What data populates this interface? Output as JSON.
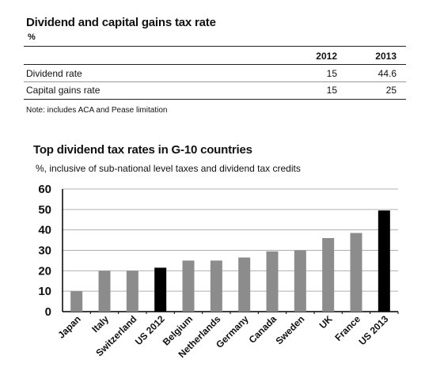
{
  "table": {
    "title": "Dividend and capital gains tax rate",
    "unit": "%",
    "columns": [
      "2012",
      "2013"
    ],
    "rows": [
      {
        "label": "Dividend rate",
        "y2012": "15",
        "y2013": "44.6"
      },
      {
        "label": "Capital gains rate",
        "y2012": "15",
        "y2013": "25"
      }
    ],
    "note": "Note: includes ACA and Pease limitation"
  },
  "chart_data": {
    "type": "bar",
    "title": "Top dividend tax rates in G-10 countries",
    "subtitle": "%, inclusive of sub-national level taxes and dividend tax credits",
    "categories": [
      "Japan",
      "Italy",
      "Switzerland",
      "US 2012",
      "Belgium",
      "Netherlands",
      "Germany",
      "Canada",
      "Sweden",
      "UK",
      "France",
      "US 2013"
    ],
    "values": [
      10,
      20,
      20,
      21.5,
      25,
      25,
      26.5,
      29.5,
      30,
      36,
      38.5,
      49.5
    ],
    "highlight": [
      "US 2012",
      "US 2013"
    ],
    "colors": {
      "default": "#8c8c8c",
      "highlight": "#000000",
      "grid": "#b0b0b0",
      "axis": "#000000"
    },
    "ylim": [
      0,
      60
    ],
    "yticks": [
      0,
      10,
      20,
      30,
      40,
      50,
      60
    ],
    "xlabel": "",
    "ylabel": "",
    "grid": true,
    "legend": "none"
  }
}
